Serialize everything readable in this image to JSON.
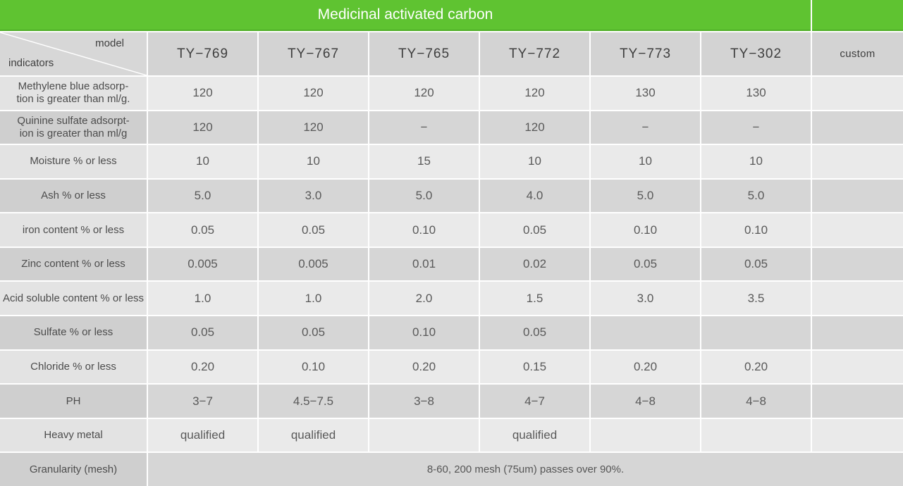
{
  "title": "Medicinal activated carbon",
  "corner": {
    "top_label": "model",
    "bottom_label": "indicators"
  },
  "columns": [
    "TY−769",
    "TY−767",
    "TY−765",
    "TY−772",
    "TY−773",
    "TY−302",
    "custom"
  ],
  "rows": [
    {
      "label_lines": [
        "Methylene blue adsorp-",
        "tion is greater than ml/g."
      ],
      "values": [
        "120",
        "120",
        "120",
        "120",
        "130",
        "130",
        ""
      ]
    },
    {
      "label_lines": [
        "Quinine sulfate adsorpt-",
        "ion is greater than ml/g"
      ],
      "values": [
        "120",
        "120",
        "−",
        "120",
        "−",
        "−",
        ""
      ]
    },
    {
      "label_lines": [
        "Moisture % or less"
      ],
      "values": [
        "10",
        "10",
        "15",
        "10",
        "10",
        "10",
        ""
      ]
    },
    {
      "label_lines": [
        "Ash % or less"
      ],
      "values": [
        "5.0",
        "3.0",
        "5.0",
        "4.0",
        "5.0",
        "5.0",
        ""
      ]
    },
    {
      "label_lines": [
        "iron content % or less"
      ],
      "values": [
        "0.05",
        "0.05",
        "0.10",
        "0.05",
        "0.10",
        "0.10",
        ""
      ]
    },
    {
      "label_lines": [
        "Zinc content % or less"
      ],
      "values": [
        "0.005",
        "0.005",
        "0.01",
        "0.02",
        "0.05",
        "0.05",
        ""
      ]
    },
    {
      "label_lines": [
        "Acid soluble content % or less"
      ],
      "values": [
        "1.0",
        "1.0",
        "2.0",
        "1.5",
        "3.0",
        "3.5",
        ""
      ]
    },
    {
      "label_lines": [
        "Sulfate % or less"
      ],
      "values": [
        "0.05",
        "0.05",
        "0.10",
        "0.05",
        "",
        "",
        ""
      ]
    },
    {
      "label_lines": [
        "Chloride % or less"
      ],
      "values": [
        "0.20",
        "0.10",
        "0.20",
        "0.15",
        "0.20",
        "0.20",
        ""
      ]
    },
    {
      "label_lines": [
        "PH"
      ],
      "values": [
        "3−7",
        "4.5−7.5",
        "3−8",
        "4−7",
        "4−8",
        "4−8",
        ""
      ]
    },
    {
      "label_lines": [
        "Heavy metal"
      ],
      "values": [
        "qualified",
        "qualified",
        "",
        "qualified",
        "",
        "",
        ""
      ]
    },
    {
      "label_lines": [
        "Granularity (mesh)"
      ],
      "merged_value": "8-60, 200 mesh (75um) passes over 90%."
    }
  ],
  "colors": {
    "accent_green": "#5fc331",
    "accent_green_dark": "#4fae27",
    "header_gray": "#d3d3d3",
    "row_light": "#eaeaea",
    "row_dark": "#d6d6d6",
    "label_light": "#e3e3e3",
    "label_dark": "#cfcfcf"
  }
}
